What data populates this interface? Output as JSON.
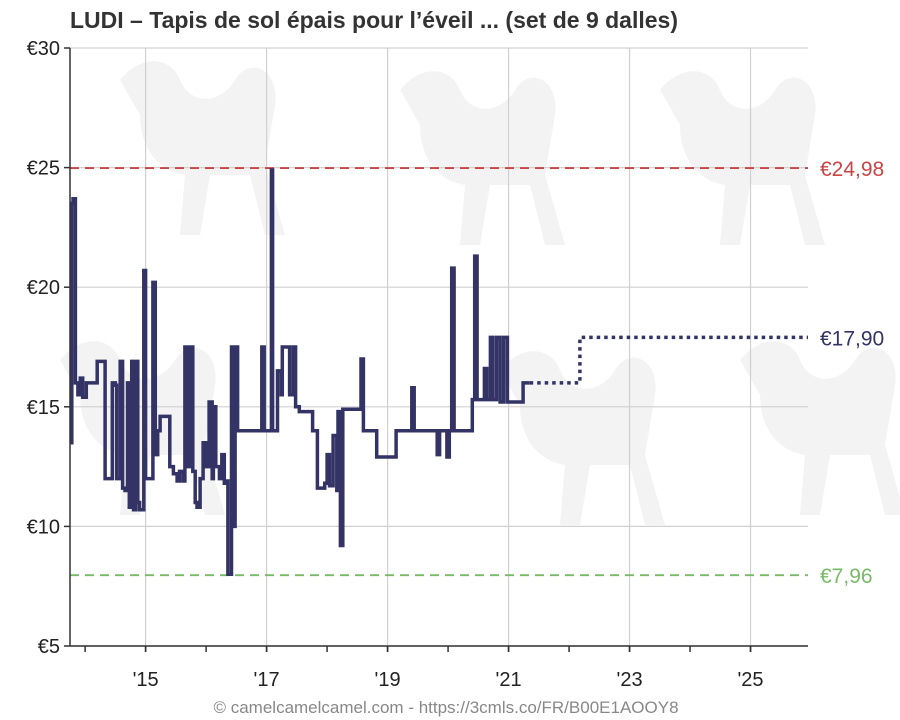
{
  "title": "LUDI – Tapis de sol épais pour l’éveil ...  (set de 9 dalles)",
  "footer": "© camelcamelcamel.com - https://3cmls.co/FR/B00E1AOOY8",
  "colors": {
    "price_line": "#333366",
    "highest": "#c94444",
    "lowest": "#77bb66",
    "grid": "#d0d0d0"
  },
  "chart_data": {
    "type": "line",
    "title": "LUDI – Tapis de sol épais pour l’éveil ...  (set de 9 dalles)",
    "ylim": [
      5,
      30
    ],
    "xlim": [
      2013.75,
      2025.95
    ],
    "y_ticks": [
      {
        "value": 30,
        "label": "€30"
      },
      {
        "value": 25,
        "label": "€25"
      },
      {
        "value": 20,
        "label": "€20"
      },
      {
        "value": 15,
        "label": "€15"
      },
      {
        "value": 10,
        "label": "€10"
      },
      {
        "value": 5,
        "label": "€5"
      }
    ],
    "x_ticks": [
      {
        "value": 2015,
        "label": "'15"
      },
      {
        "value": 2017,
        "label": "'17"
      },
      {
        "value": 2019,
        "label": "'19"
      },
      {
        "value": 2021,
        "label": "'21"
      },
      {
        "value": 2023,
        "label": "'23"
      },
      {
        "value": 2025,
        "label": "'25"
      }
    ],
    "grid": true,
    "reference_lines": [
      {
        "name": "highest",
        "value": 24.98,
        "label": "€24,98",
        "color": "#c94444",
        "style": "dashed"
      },
      {
        "name": "lowest",
        "value": 7.96,
        "label": "€7,96",
        "color": "#77bb66",
        "style": "dashed"
      },
      {
        "name": "current",
        "value": 17.9,
        "label": "€17,90",
        "color": "#333366",
        "style": "label"
      }
    ],
    "series": [
      {
        "color": "#333366",
        "style": "solid",
        "points": [
          [
            2013.76,
            13.5
          ],
          [
            2013.78,
            23.5
          ],
          [
            2013.8,
            23.7
          ],
          [
            2013.84,
            16.0
          ],
          [
            2013.88,
            15.5
          ],
          [
            2013.92,
            16.2
          ],
          [
            2013.96,
            15.4
          ],
          [
            2014.02,
            16.0
          ],
          [
            2014.1,
            16.0
          ],
          [
            2014.2,
            16.9
          ],
          [
            2014.3,
            16.9
          ],
          [
            2014.33,
            12.0
          ],
          [
            2014.4,
            12.0
          ],
          [
            2014.45,
            16.0
          ],
          [
            2014.5,
            15.9
          ],
          [
            2014.52,
            12.0
          ],
          [
            2014.58,
            16.9
          ],
          [
            2014.62,
            11.6
          ],
          [
            2014.66,
            11.5
          ],
          [
            2014.7,
            16.0
          ],
          [
            2014.73,
            10.8
          ],
          [
            2014.77,
            16.9
          ],
          [
            2014.8,
            10.7
          ],
          [
            2014.84,
            16.9
          ],
          [
            2014.87,
            11.0
          ],
          [
            2014.9,
            10.7
          ],
          [
            2014.95,
            10.7
          ],
          [
            2014.97,
            20.7
          ],
          [
            2015.0,
            12.0
          ],
          [
            2015.08,
            12.0
          ],
          [
            2015.12,
            20.2
          ],
          [
            2015.16,
            13.0
          ],
          [
            2015.2,
            14.0
          ],
          [
            2015.24,
            14.6
          ],
          [
            2015.3,
            14.6
          ],
          [
            2015.36,
            14.6
          ],
          [
            2015.4,
            12.5
          ],
          [
            2015.46,
            12.2
          ],
          [
            2015.52,
            11.9
          ],
          [
            2015.56,
            12.3
          ],
          [
            2015.62,
            11.9
          ],
          [
            2015.65,
            17.5
          ],
          [
            2015.7,
            12.5
          ],
          [
            2015.74,
            17.5
          ],
          [
            2015.78,
            12.3
          ],
          [
            2015.82,
            11.0
          ],
          [
            2015.85,
            10.8
          ],
          [
            2015.9,
            12.0
          ],
          [
            2015.95,
            13.5
          ],
          [
            2016.0,
            12.5
          ],
          [
            2016.05,
            15.2
          ],
          [
            2016.1,
            12.0
          ],
          [
            2016.12,
            15.0
          ],
          [
            2016.16,
            12.5
          ],
          [
            2016.22,
            12.0
          ],
          [
            2016.26,
            13.0
          ],
          [
            2016.3,
            11.8
          ],
          [
            2016.32,
            11.9
          ],
          [
            2016.36,
            8.0
          ],
          [
            2016.4,
            8.0
          ],
          [
            2016.42,
            17.5
          ],
          [
            2016.46,
            10.0
          ],
          [
            2016.48,
            17.5
          ],
          [
            2016.52,
            14.0
          ],
          [
            2016.7,
            14.0
          ],
          [
            2016.9,
            14.0
          ],
          [
            2016.92,
            17.5
          ],
          [
            2016.96,
            14.0
          ],
          [
            2017.05,
            14.0
          ],
          [
            2017.08,
            24.9
          ],
          [
            2017.1,
            14.0
          ],
          [
            2017.16,
            14.0
          ],
          [
            2017.18,
            16.5
          ],
          [
            2017.24,
            15.5
          ],
          [
            2017.26,
            17.5
          ],
          [
            2017.32,
            17.5
          ],
          [
            2017.38,
            15.5
          ],
          [
            2017.44,
            17.5
          ],
          [
            2017.48,
            15.0
          ],
          [
            2017.54,
            14.8
          ],
          [
            2017.7,
            14.8
          ],
          [
            2017.76,
            14.0
          ],
          [
            2017.84,
            11.6
          ],
          [
            2017.96,
            11.8
          ],
          [
            2018.0,
            13.0
          ],
          [
            2018.04,
            11.7
          ],
          [
            2018.1,
            13.8
          ],
          [
            2018.16,
            11.5
          ],
          [
            2018.18,
            14.8
          ],
          [
            2018.22,
            9.2
          ],
          [
            2018.26,
            14.9
          ],
          [
            2018.3,
            14.9
          ],
          [
            2018.5,
            14.9
          ],
          [
            2018.56,
            17.0
          ],
          [
            2018.6,
            14.0
          ],
          [
            2018.78,
            14.0
          ],
          [
            2018.82,
            12.9
          ],
          [
            2019.1,
            12.9
          ],
          [
            2019.14,
            14.0
          ],
          [
            2019.36,
            14.0
          ],
          [
            2019.4,
            15.8
          ],
          [
            2019.44,
            14.0
          ],
          [
            2019.8,
            14.0
          ],
          [
            2019.82,
            13.0
          ],
          [
            2019.86,
            14.0
          ],
          [
            2019.96,
            14.0
          ],
          [
            2019.98,
            12.9
          ],
          [
            2020.02,
            14.0
          ],
          [
            2020.06,
            20.8
          ],
          [
            2020.1,
            14.0
          ],
          [
            2020.35,
            14.0
          ],
          [
            2020.4,
            15.3
          ],
          [
            2020.44,
            21.3
          ],
          [
            2020.48,
            15.3
          ],
          [
            2020.56,
            15.3
          ],
          [
            2020.6,
            16.6
          ],
          [
            2020.64,
            15.3
          ],
          [
            2020.7,
            17.9
          ],
          [
            2020.74,
            15.3
          ],
          [
            2020.8,
            17.9
          ],
          [
            2020.86,
            15.2
          ],
          [
            2020.92,
            17.9
          ],
          [
            2020.98,
            15.2
          ],
          [
            2021.06,
            15.2
          ],
          [
            2021.2,
            15.2
          ],
          [
            2021.24,
            16.0
          ],
          [
            2021.35,
            16.0
          ]
        ]
      },
      {
        "color": "#333366",
        "style": "dotted",
        "points": [
          [
            2021.35,
            16.0
          ],
          [
            2022.15,
            16.0
          ],
          [
            2022.18,
            17.9
          ],
          [
            2025.95,
            17.9
          ]
        ]
      }
    ]
  }
}
